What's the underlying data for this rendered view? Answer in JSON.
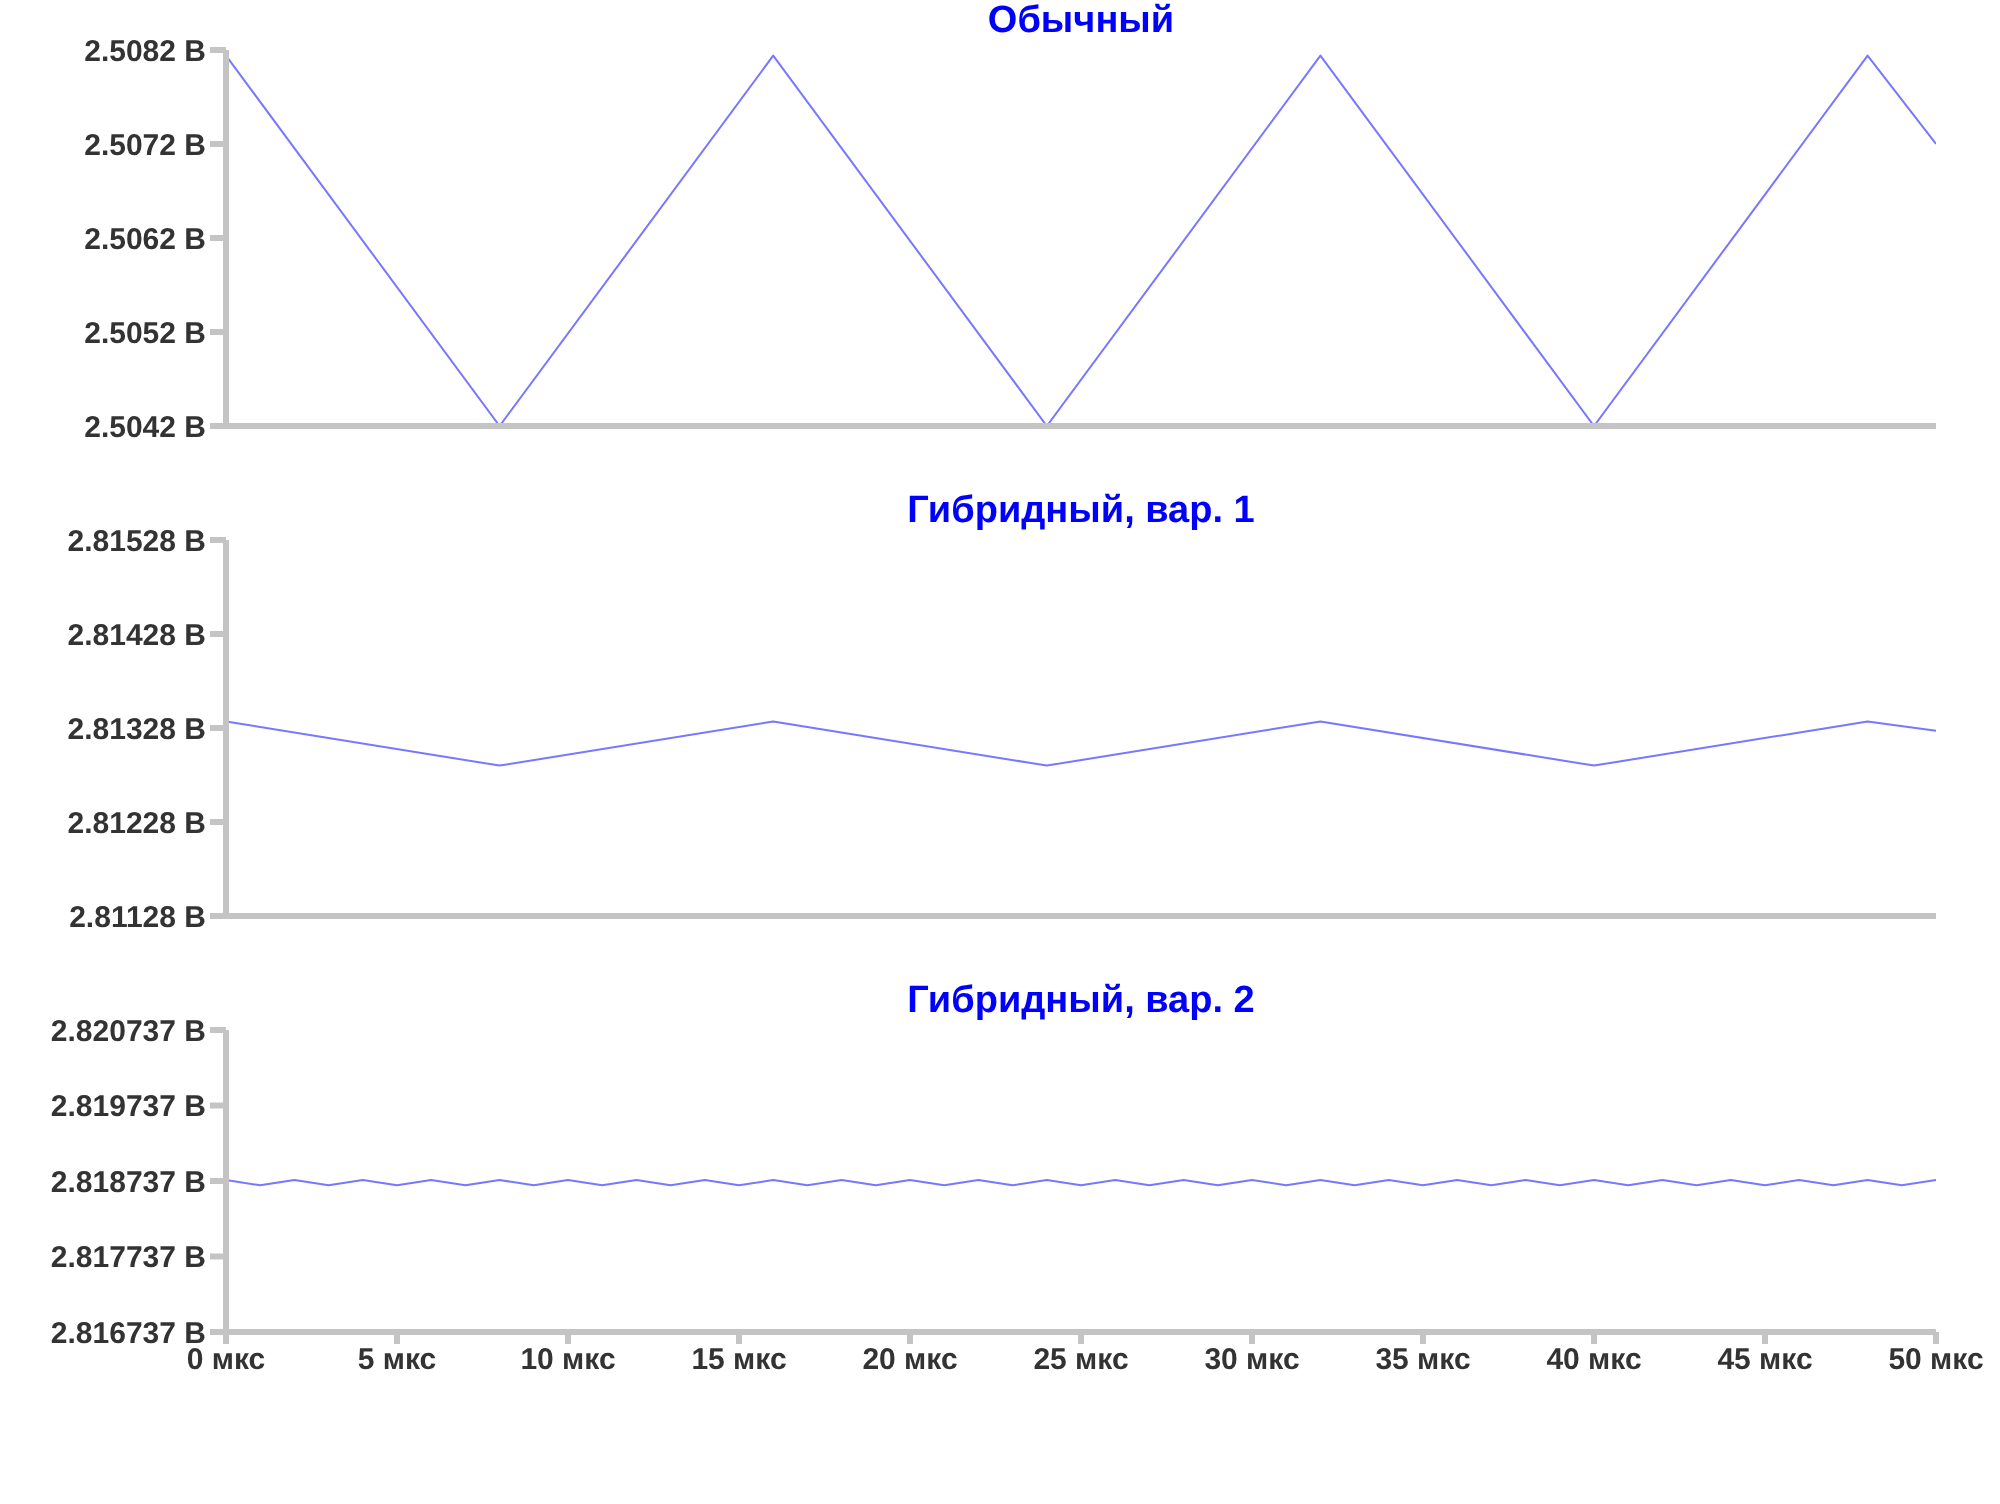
{
  "chart_data": [
    {
      "type": "line",
      "title": "Обычный",
      "x": [
        0,
        8,
        16,
        24,
        32,
        40,
        48,
        50
      ],
      "values": [
        2.50814,
        2.5042,
        2.50814,
        2.5042,
        2.50814,
        2.5042,
        2.50814,
        2.5072
      ],
      "color": "#7777ff",
      "xlim": [
        0,
        50
      ],
      "ylim": [
        2.5042,
        2.5082
      ],
      "yticks": [
        {
          "value": 2.5042,
          "label": "2.5042 В"
        },
        {
          "value": 2.5052,
          "label": "2.5052 В"
        },
        {
          "value": 2.5062,
          "label": "2.5062 В"
        },
        {
          "value": 2.5072,
          "label": "2.5072 В"
        },
        {
          "value": 2.5082,
          "label": "2.5082 В"
        }
      ],
      "tick_labels": "y"
    },
    {
      "type": "line",
      "title": "Гибридный, вар. 1",
      "x": [
        0,
        8,
        16,
        24,
        32,
        40,
        48,
        50
      ],
      "values": [
        2.81335,
        2.81288,
        2.81335,
        2.81288,
        2.81335,
        2.81288,
        2.81335,
        2.81325
      ],
      "color": "#7777ff",
      "xlim": [
        0,
        50
      ],
      "ylim": [
        2.81128,
        2.81528
      ],
      "yticks": [
        {
          "value": 2.81128,
          "label": "2.81128 В"
        },
        {
          "value": 2.81228,
          "label": "2.81228 В"
        },
        {
          "value": 2.81328,
          "label": "2.81328 В"
        },
        {
          "value": 2.81428,
          "label": "2.81428 В"
        },
        {
          "value": 2.81528,
          "label": "2.81528 В"
        }
      ],
      "tick_labels": "y"
    },
    {
      "type": "line",
      "title": "Гибридный, вар. 2",
      "x": [
        0,
        1,
        2,
        3,
        4,
        5,
        6,
        7,
        8,
        9,
        10,
        11,
        12,
        13,
        14,
        15,
        16,
        17,
        18,
        19,
        20,
        21,
        22,
        23,
        24,
        25,
        26,
        27,
        28,
        29,
        30,
        31,
        32,
        33,
        34,
        35,
        36,
        37,
        38,
        39,
        40,
        41,
        42,
        43,
        44,
        45,
        46,
        47,
        48,
        49,
        50
      ],
      "values": [
        2.81875,
        2.81868,
        2.81875,
        2.81868,
        2.81875,
        2.81868,
        2.81875,
        2.81868,
        2.81875,
        2.81868,
        2.81875,
        2.81868,
        2.81875,
        2.81868,
        2.81875,
        2.81868,
        2.81875,
        2.81868,
        2.81875,
        2.81868,
        2.81875,
        2.81868,
        2.81875,
        2.81868,
        2.81875,
        2.81868,
        2.81875,
        2.81868,
        2.81875,
        2.81868,
        2.81875,
        2.81868,
        2.81875,
        2.81868,
        2.81875,
        2.81868,
        2.81875,
        2.81868,
        2.81875,
        2.81868,
        2.81875,
        2.81868,
        2.81875,
        2.81868,
        2.81875,
        2.81868,
        2.81875,
        2.81868,
        2.81875,
        2.81868,
        2.81875
      ],
      "color": "#7777ff",
      "xlim": [
        0,
        50
      ],
      "ylim": [
        2.816737,
        2.820737
      ],
      "xticks": [
        {
          "value": 0,
          "label": "0 мкс"
        },
        {
          "value": 5,
          "label": "5 мкс"
        },
        {
          "value": 10,
          "label": "10 мкс"
        },
        {
          "value": 15,
          "label": "15 мкс"
        },
        {
          "value": 20,
          "label": "20 мкс"
        },
        {
          "value": 25,
          "label": "25 мкс"
        },
        {
          "value": 30,
          "label": "30 мкс"
        },
        {
          "value": 35,
          "label": "35 мкс"
        },
        {
          "value": 40,
          "label": "40 мкс"
        },
        {
          "value": 45,
          "label": "45 мкс"
        },
        {
          "value": 50,
          "label": "50 мкс"
        }
      ],
      "yticks": [
        {
          "value": 2.816737,
          "label": "2.816737 В"
        },
        {
          "value": 2.817737,
          "label": "2.817737 В"
        },
        {
          "value": 2.818737,
          "label": "2.818737 В"
        },
        {
          "value": 2.819737,
          "label": "2.819737 В"
        },
        {
          "value": 2.820737,
          "label": "2.820737 В"
        }
      ]
    }
  ]
}
